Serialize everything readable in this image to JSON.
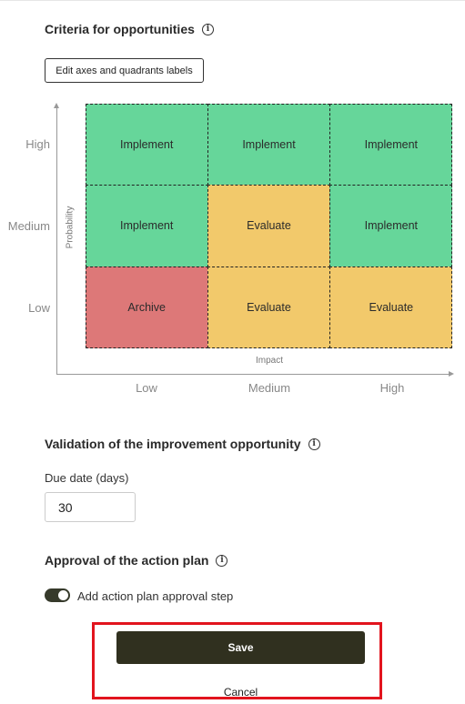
{
  "criteria": {
    "title": "Criteria for opportunities",
    "edit_button_label": "Edit axes and quadrants labels"
  },
  "matrix": {
    "y_axis_label": "Probability",
    "x_axis_label": "Impact",
    "rows": [
      "High",
      "Medium",
      "Low"
    ],
    "columns": [
      "Low",
      "Medium",
      "High"
    ],
    "cells": [
      [
        "Implement",
        "Implement",
        "Implement"
      ],
      [
        "Implement",
        "Evaluate",
        "Implement"
      ],
      [
        "Archive",
        "Evaluate",
        "Evaluate"
      ]
    ],
    "colors": {
      "Implement": "#66d69a",
      "Evaluate": "#f2c96b",
      "Archive": "#dd7878"
    }
  },
  "validation": {
    "title": "Validation of the improvement opportunity",
    "due_date_label": "Due date (days)",
    "due_date_value": "30"
  },
  "approval": {
    "title": "Approval of the action plan",
    "toggle_label": "Add action plan approval step",
    "toggle_on": true
  },
  "actions": {
    "save_label": "Save",
    "cancel_label": "Cancel"
  }
}
